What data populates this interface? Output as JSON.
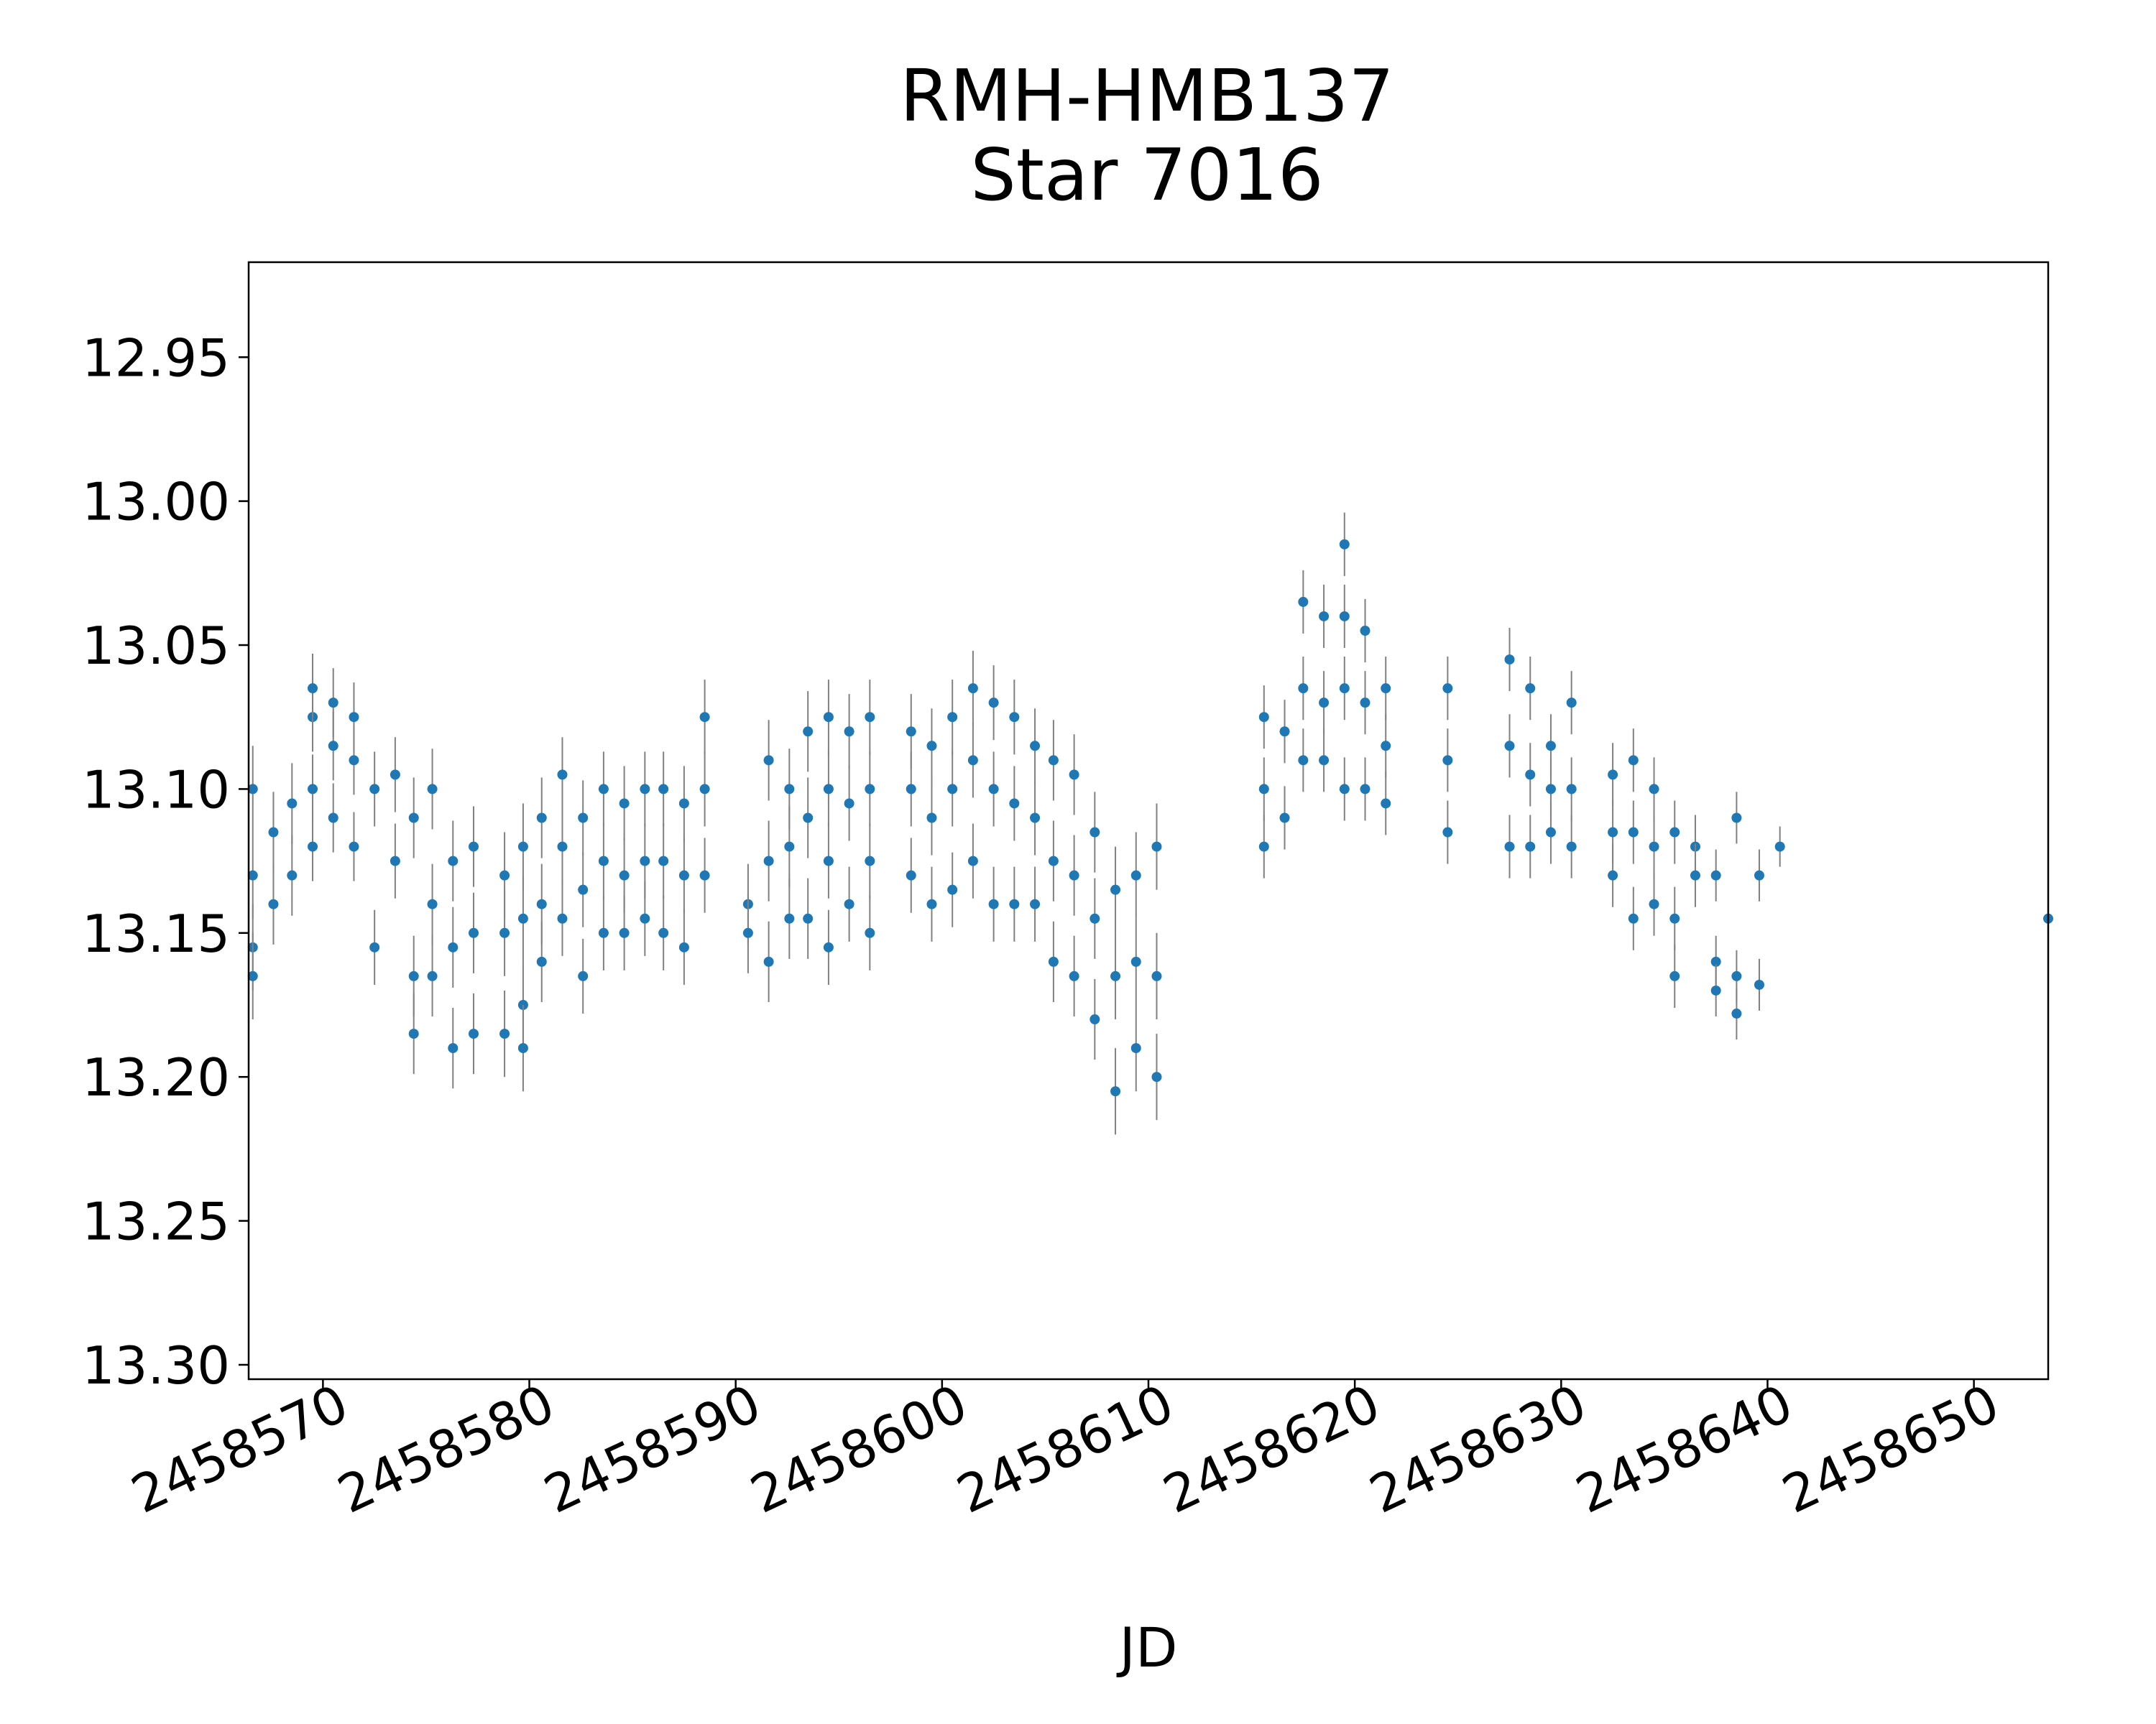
{
  "chart_data": {
    "type": "scatter",
    "title": "RMH-HMB137",
    "subtitle": "Star 7016",
    "xlabel": "JD",
    "ylabel": "",
    "xlim": [
      2458566.4,
      2458653.6
    ],
    "ylim": [
      13.305,
      12.917
    ],
    "y_inverted": true,
    "grid": false,
    "x_ticks": [
      2458570,
      2458580,
      2458590,
      2458600,
      2458610,
      2458620,
      2458630,
      2458640,
      2458650
    ],
    "x_tick_labels": [
      "2458570",
      "2458580",
      "2458590",
      "2458600",
      "2458610",
      "2458620",
      "2458630",
      "2458640",
      "2458650"
    ],
    "y_ticks": [
      12.95,
      13.0,
      13.05,
      13.1,
      13.15,
      13.2,
      13.25,
      13.3
    ],
    "y_tick_labels": [
      "12.95",
      "13.00",
      "13.05",
      "13.10",
      "13.15",
      "13.20",
      "13.25",
      "13.30"
    ],
    "colors": {
      "marker": "#1f77b4",
      "errorbar": "#808080"
    },
    "series": [
      {
        "points": [
          [
            2458566.6,
            13.13,
            0.015
          ],
          [
            2458566.6,
            13.155,
            0.015
          ],
          [
            2458566.6,
            13.165,
            0.015
          ],
          [
            2458566.6,
            13.1,
            0.015
          ],
          [
            2458567.6,
            13.115,
            0.014
          ],
          [
            2458567.6,
            13.14,
            0.014
          ],
          [
            2458568.5,
            13.105,
            0.014
          ],
          [
            2458568.5,
            13.13,
            0.014
          ],
          [
            2458569.5,
            13.075,
            0.012
          ],
          [
            2458569.5,
            13.065,
            0.012
          ],
          [
            2458569.5,
            13.1,
            0.012
          ],
          [
            2458569.5,
            13.12,
            0.012
          ],
          [
            2458570.5,
            13.07,
            0.012
          ],
          [
            2458570.5,
            13.085,
            0.012
          ],
          [
            2458570.5,
            13.11,
            0.012
          ],
          [
            2458571.5,
            13.075,
            0.012
          ],
          [
            2458571.5,
            13.09,
            0.012
          ],
          [
            2458571.5,
            13.12,
            0.012
          ],
          [
            2458572.5,
            13.1,
            0.013
          ],
          [
            2458572.5,
            13.155,
            0.013
          ],
          [
            2458573.5,
            13.095,
            0.013
          ],
          [
            2458573.5,
            13.125,
            0.013
          ],
          [
            2458574.4,
            13.11,
            0.014
          ],
          [
            2458574.4,
            13.185,
            0.014
          ],
          [
            2458574.4,
            13.165,
            0.014
          ],
          [
            2458575.3,
            13.1,
            0.014
          ],
          [
            2458575.3,
            13.14,
            0.014
          ],
          [
            2458575.3,
            13.165,
            0.014
          ],
          [
            2458576.3,
            13.125,
            0.014
          ],
          [
            2458576.3,
            13.155,
            0.014
          ],
          [
            2458576.3,
            13.19,
            0.014
          ],
          [
            2458577.3,
            13.12,
            0.014
          ],
          [
            2458577.3,
            13.15,
            0.014
          ],
          [
            2458577.3,
            13.185,
            0.014
          ],
          [
            2458578.8,
            13.13,
            0.015
          ],
          [
            2458578.8,
            13.15,
            0.015
          ],
          [
            2458578.8,
            13.185,
            0.015
          ],
          [
            2458579.7,
            13.12,
            0.015
          ],
          [
            2458579.7,
            13.145,
            0.015
          ],
          [
            2458579.7,
            13.175,
            0.015
          ],
          [
            2458579.7,
            13.19,
            0.015
          ],
          [
            2458580.6,
            13.11,
            0.014
          ],
          [
            2458580.6,
            13.14,
            0.014
          ],
          [
            2458580.6,
            13.16,
            0.014
          ],
          [
            2458581.6,
            13.095,
            0.013
          ],
          [
            2458581.6,
            13.12,
            0.013
          ],
          [
            2458581.6,
            13.145,
            0.013
          ],
          [
            2458582.6,
            13.11,
            0.013
          ],
          [
            2458582.6,
            13.135,
            0.013
          ],
          [
            2458582.6,
            13.165,
            0.013
          ],
          [
            2458583.6,
            13.1,
            0.013
          ],
          [
            2458583.6,
            13.125,
            0.013
          ],
          [
            2458583.6,
            13.15,
            0.013
          ],
          [
            2458584.6,
            13.105,
            0.013
          ],
          [
            2458584.6,
            13.13,
            0.013
          ],
          [
            2458584.6,
            13.15,
            0.013
          ],
          [
            2458585.6,
            13.1,
            0.013
          ],
          [
            2458585.6,
            13.125,
            0.013
          ],
          [
            2458585.6,
            13.145,
            0.013
          ],
          [
            2458586.5,
            13.1,
            0.013
          ],
          [
            2458586.5,
            13.125,
            0.013
          ],
          [
            2458586.5,
            13.15,
            0.013
          ],
          [
            2458587.5,
            13.105,
            0.013
          ],
          [
            2458587.5,
            13.13,
            0.013
          ],
          [
            2458587.5,
            13.155,
            0.013
          ],
          [
            2458588.5,
            13.075,
            0.013
          ],
          [
            2458588.5,
            13.1,
            0.013
          ],
          [
            2458588.5,
            13.13,
            0.013
          ],
          [
            2458590.6,
            13.14,
            0.014
          ],
          [
            2458590.6,
            13.15,
            0.014
          ],
          [
            2458591.6,
            13.09,
            0.014
          ],
          [
            2458591.6,
            13.125,
            0.014
          ],
          [
            2458591.6,
            13.16,
            0.014
          ],
          [
            2458592.6,
            13.1,
            0.014
          ],
          [
            2458592.6,
            13.12,
            0.014
          ],
          [
            2458592.6,
            13.145,
            0.014
          ],
          [
            2458593.5,
            13.08,
            0.014
          ],
          [
            2458593.5,
            13.11,
            0.014
          ],
          [
            2458593.5,
            13.145,
            0.014
          ],
          [
            2458594.5,
            13.075,
            0.013
          ],
          [
            2458594.5,
            13.1,
            0.013
          ],
          [
            2458594.5,
            13.125,
            0.013
          ],
          [
            2458594.5,
            13.155,
            0.013
          ],
          [
            2458595.5,
            13.08,
            0.013
          ],
          [
            2458595.5,
            13.105,
            0.013
          ],
          [
            2458595.5,
            13.14,
            0.013
          ],
          [
            2458596.5,
            13.075,
            0.013
          ],
          [
            2458596.5,
            13.1,
            0.013
          ],
          [
            2458596.5,
            13.125,
            0.013
          ],
          [
            2458596.5,
            13.15,
            0.013
          ],
          [
            2458598.5,
            13.08,
            0.013
          ],
          [
            2458598.5,
            13.1,
            0.013
          ],
          [
            2458598.5,
            13.13,
            0.013
          ],
          [
            2458599.5,
            13.085,
            0.013
          ],
          [
            2458599.5,
            13.11,
            0.013
          ],
          [
            2458599.5,
            13.14,
            0.013
          ],
          [
            2458600.5,
            13.075,
            0.013
          ],
          [
            2458600.5,
            13.1,
            0.013
          ],
          [
            2458600.5,
            13.135,
            0.013
          ],
          [
            2458601.5,
            13.065,
            0.013
          ],
          [
            2458601.5,
            13.09,
            0.013
          ],
          [
            2458601.5,
            13.125,
            0.013
          ],
          [
            2458602.5,
            13.07,
            0.013
          ],
          [
            2458602.5,
            13.1,
            0.013
          ],
          [
            2458602.5,
            13.14,
            0.013
          ],
          [
            2458603.5,
            13.075,
            0.013
          ],
          [
            2458603.5,
            13.105,
            0.013
          ],
          [
            2458603.5,
            13.14,
            0.013
          ],
          [
            2458604.5,
            13.085,
            0.013
          ],
          [
            2458604.5,
            13.11,
            0.013
          ],
          [
            2458604.5,
            13.14,
            0.013
          ],
          [
            2458605.4,
            13.09,
            0.014
          ],
          [
            2458605.4,
            13.125,
            0.014
          ],
          [
            2458605.4,
            13.16,
            0.014
          ],
          [
            2458606.4,
            13.095,
            0.014
          ],
          [
            2458606.4,
            13.13,
            0.014
          ],
          [
            2458606.4,
            13.165,
            0.014
          ],
          [
            2458607.4,
            13.115,
            0.014
          ],
          [
            2458607.4,
            13.145,
            0.014
          ],
          [
            2458607.4,
            13.18,
            0.014
          ],
          [
            2458608.4,
            13.135,
            0.015
          ],
          [
            2458608.4,
            13.165,
            0.015
          ],
          [
            2458608.4,
            13.205,
            0.015
          ],
          [
            2458609.4,
            13.13,
            0.015
          ],
          [
            2458609.4,
            13.16,
            0.015
          ],
          [
            2458609.4,
            13.19,
            0.015
          ],
          [
            2458610.4,
            13.12,
            0.015
          ],
          [
            2458610.4,
            13.165,
            0.015
          ],
          [
            2458610.4,
            13.2,
            0.015
          ],
          [
            2458615.6,
            13.075,
            0.011
          ],
          [
            2458615.6,
            13.1,
            0.011
          ],
          [
            2458615.6,
            13.12,
            0.011
          ],
          [
            2458616.6,
            13.08,
            0.011
          ],
          [
            2458616.6,
            13.11,
            0.011
          ],
          [
            2458617.5,
            13.035,
            0.011
          ],
          [
            2458617.5,
            13.065,
            0.011
          ],
          [
            2458617.5,
            13.09,
            0.011
          ],
          [
            2458618.5,
            13.04,
            0.011
          ],
          [
            2458618.5,
            13.07,
            0.011
          ],
          [
            2458618.5,
            13.09,
            0.011
          ],
          [
            2458619.5,
            13.015,
            0.011
          ],
          [
            2458619.5,
            13.04,
            0.011
          ],
          [
            2458619.5,
            13.065,
            0.011
          ],
          [
            2458619.5,
            13.1,
            0.011
          ],
          [
            2458620.5,
            13.045,
            0.011
          ],
          [
            2458620.5,
            13.07,
            0.011
          ],
          [
            2458620.5,
            13.1,
            0.011
          ],
          [
            2458621.5,
            13.065,
            0.011
          ],
          [
            2458621.5,
            13.085,
            0.011
          ],
          [
            2458621.5,
            13.105,
            0.011
          ],
          [
            2458624.5,
            13.065,
            0.011
          ],
          [
            2458624.5,
            13.09,
            0.011
          ],
          [
            2458624.5,
            13.115,
            0.011
          ],
          [
            2458627.5,
            13.055,
            0.011
          ],
          [
            2458627.5,
            13.085,
            0.011
          ],
          [
            2458627.5,
            13.12,
            0.011
          ],
          [
            2458628.5,
            13.065,
            0.011
          ],
          [
            2458628.5,
            13.095,
            0.011
          ],
          [
            2458628.5,
            13.12,
            0.011
          ],
          [
            2458629.5,
            13.085,
            0.011
          ],
          [
            2458629.5,
            13.1,
            0.011
          ],
          [
            2458629.5,
            13.115,
            0.011
          ],
          [
            2458630.5,
            13.07,
            0.011
          ],
          [
            2458630.5,
            13.1,
            0.011
          ],
          [
            2458630.5,
            13.12,
            0.011
          ],
          [
            2458632.5,
            13.095,
            0.011
          ],
          [
            2458632.5,
            13.115,
            0.011
          ],
          [
            2458632.5,
            13.13,
            0.011
          ],
          [
            2458633.5,
            13.09,
            0.011
          ],
          [
            2458633.5,
            13.115,
            0.011
          ],
          [
            2458633.5,
            13.145,
            0.011
          ],
          [
            2458634.5,
            13.1,
            0.011
          ],
          [
            2458634.5,
            13.12,
            0.011
          ],
          [
            2458634.5,
            13.14,
            0.011
          ],
          [
            2458635.5,
            13.115,
            0.011
          ],
          [
            2458635.5,
            13.145,
            0.011
          ],
          [
            2458635.5,
            13.165,
            0.011
          ],
          [
            2458636.5,
            13.12,
            0.011
          ],
          [
            2458636.5,
            13.13,
            0.011
          ],
          [
            2458637.5,
            13.13,
            0.009
          ],
          [
            2458637.5,
            13.16,
            0.009
          ],
          [
            2458637.5,
            13.17,
            0.009
          ],
          [
            2458638.5,
            13.11,
            0.009
          ],
          [
            2458638.5,
            13.165,
            0.009
          ],
          [
            2458638.5,
            13.178,
            0.009
          ],
          [
            2458639.6,
            13.13,
            0.009
          ],
          [
            2458639.6,
            13.168,
            0.009
          ],
          [
            2458640.6,
            13.12,
            0.007
          ],
          [
            2458653.6,
            13.145,
            0.007
          ]
        ]
      }
    ]
  }
}
